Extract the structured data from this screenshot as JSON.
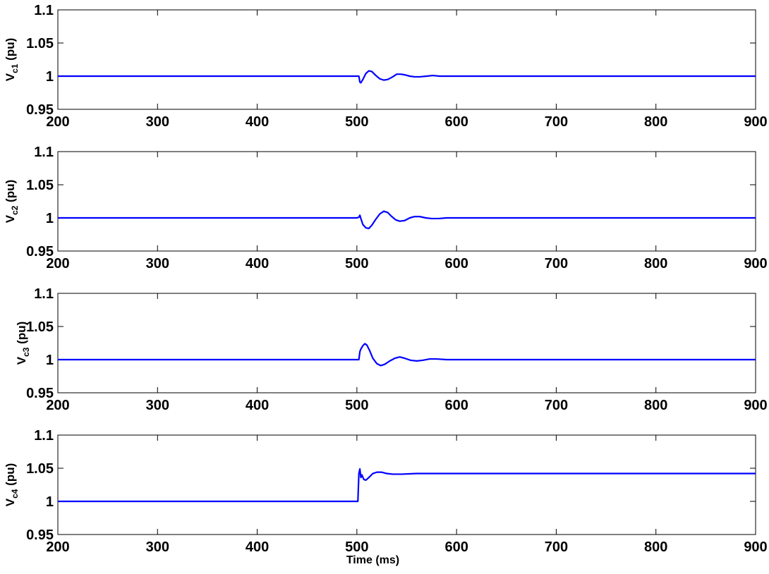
{
  "chart_data": [
    {
      "type": "line",
      "ylabel_main": "V",
      "ylabel_sub": "c1",
      "ylabel_unit": " (pu)",
      "xlabel": "",
      "xlim": [
        200,
        900
      ],
      "ylim": [
        0.95,
        1.1
      ],
      "xticks": [
        "200",
        "300",
        "400",
        "500",
        "600",
        "700",
        "800",
        "900"
      ],
      "yticks": [
        "0.95",
        "1",
        "1.05",
        "1.1"
      ],
      "grid": false,
      "color": "#0000ff",
      "points": [
        [
          200,
          1.0
        ],
        [
          500,
          1.0
        ],
        [
          502,
          1.0
        ],
        [
          503,
          0.991
        ],
        [
          504,
          0.99
        ],
        [
          506,
          0.995
        ],
        [
          509,
          1.004
        ],
        [
          512,
          1.008
        ],
        [
          515,
          1.007
        ],
        [
          519,
          1.001
        ],
        [
          523,
          0.996
        ],
        [
          527,
          0.994
        ],
        [
          531,
          0.995
        ],
        [
          536,
          0.999
        ],
        [
          540,
          1.003
        ],
        [
          544,
          1.003
        ],
        [
          548,
          1.002
        ],
        [
          553,
          1.0
        ],
        [
          558,
          0.999
        ],
        [
          563,
          0.999
        ],
        [
          570,
          1.0
        ],
        [
          576,
          1.001
        ],
        [
          583,
          1.0
        ],
        [
          590,
          1.0
        ],
        [
          600,
          1.0
        ],
        [
          900,
          1.0
        ]
      ]
    },
    {
      "type": "line",
      "ylabel_main": "V",
      "ylabel_sub": "c2",
      "ylabel_unit": " (pu)",
      "xlabel": "",
      "xlim": [
        200,
        900
      ],
      "ylim": [
        0.95,
        1.1
      ],
      "xticks": [
        "200",
        "300",
        "400",
        "500",
        "600",
        "700",
        "800",
        "900"
      ],
      "yticks": [
        "0.95",
        "1",
        "1.05",
        "1.1"
      ],
      "grid": false,
      "color": "#0000ff",
      "points": [
        [
          200,
          1.0
        ],
        [
          500,
          1.0
        ],
        [
          502,
          1.001
        ],
        [
          503,
          1.004
        ],
        [
          504,
          0.999
        ],
        [
          506,
          0.99
        ],
        [
          509,
          0.985
        ],
        [
          512,
          0.984
        ],
        [
          515,
          0.989
        ],
        [
          519,
          0.998
        ],
        [
          523,
          1.006
        ],
        [
          527,
          1.01
        ],
        [
          531,
          1.008
        ],
        [
          535,
          1.002
        ],
        [
          539,
          0.997
        ],
        [
          543,
          0.995
        ],
        [
          548,
          0.996
        ],
        [
          553,
          1.0
        ],
        [
          558,
          1.002
        ],
        [
          563,
          1.002
        ],
        [
          569,
          1.0
        ],
        [
          575,
          0.999
        ],
        [
          582,
          0.999
        ],
        [
          590,
          1.0
        ],
        [
          600,
          1.0
        ],
        [
          900,
          1.0
        ]
      ]
    },
    {
      "type": "line",
      "ylabel_main": "V",
      "ylabel_sub": "c3",
      "ylabel_unit": " (pu)",
      "xlabel": "",
      "xlim": [
        200,
        900
      ],
      "ylim": [
        0.95,
        1.1
      ],
      "xticks": [
        "200",
        "300",
        "400",
        "500",
        "600",
        "700",
        "800",
        "900"
      ],
      "yticks": [
        "0.95",
        "1",
        "1.05",
        "1.1"
      ],
      "grid": false,
      "color": "#0000ff",
      "points": [
        [
          200,
          1.0
        ],
        [
          500,
          1.0
        ],
        [
          502,
          1.0
        ],
        [
          503,
          1.012
        ],
        [
          504,
          1.016
        ],
        [
          506,
          1.021
        ],
        [
          508,
          1.024
        ],
        [
          510,
          1.022
        ],
        [
          513,
          1.013
        ],
        [
          516,
          1.002
        ],
        [
          520,
          0.994
        ],
        [
          524,
          0.991
        ],
        [
          528,
          0.993
        ],
        [
          533,
          0.998
        ],
        [
          538,
          1.002
        ],
        [
          543,
          1.004
        ],
        [
          548,
          1.002
        ],
        [
          554,
          0.999
        ],
        [
          560,
          0.998
        ],
        [
          566,
          0.999
        ],
        [
          573,
          1.001
        ],
        [
          580,
          1.001
        ],
        [
          590,
          1.0
        ],
        [
          600,
          1.0
        ],
        [
          900,
          1.0
        ]
      ]
    },
    {
      "type": "line",
      "ylabel_main": "V",
      "ylabel_sub": "c4",
      "ylabel_unit": " (pu)",
      "xlabel": "Time (ms)",
      "xlim": [
        200,
        900
      ],
      "ylim": [
        0.95,
        1.1
      ],
      "xticks": [
        "200",
        "300",
        "400",
        "500",
        "600",
        "700",
        "800",
        "900"
      ],
      "yticks": [
        "0.95",
        "1",
        "1.05",
        "1.1"
      ],
      "grid": false,
      "color": "#0000ff",
      "points": [
        [
          200,
          1.0
        ],
        [
          500,
          1.0
        ],
        [
          501,
          1.0
        ],
        [
          502,
          1.042
        ],
        [
          503,
          1.049
        ],
        [
          504,
          1.036
        ],
        [
          505,
          1.04
        ],
        [
          507,
          1.033
        ],
        [
          509,
          1.032
        ],
        [
          512,
          1.036
        ],
        [
          516,
          1.042
        ],
        [
          520,
          1.044
        ],
        [
          525,
          1.044
        ],
        [
          530,
          1.042
        ],
        [
          536,
          1.041
        ],
        [
          545,
          1.041
        ],
        [
          560,
          1.042
        ],
        [
          600,
          1.042
        ],
        [
          900,
          1.042
        ]
      ]
    }
  ]
}
